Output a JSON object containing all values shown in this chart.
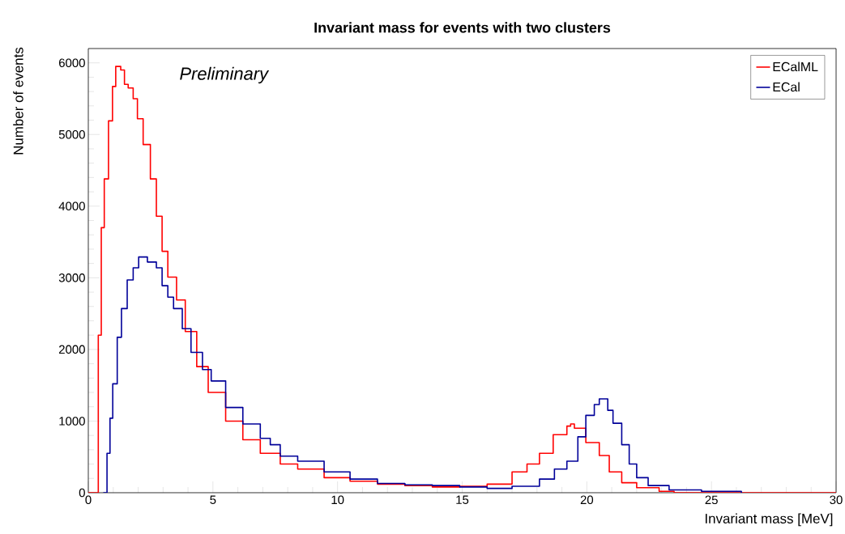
{
  "chart_data": {
    "type": "step",
    "title": "Invariant mass for events with two clusters",
    "xlabel": "Invariant mass [MeV]",
    "ylabel": "Number of events",
    "annotations": [
      "Preliminary"
    ],
    "series": [
      {
        "name": "ECalML",
        "color": "#ff0000",
        "x": [
          0,
          0.23,
          0.4,
          0.52,
          0.64,
          0.81,
          0.97,
          1.1,
          1.3,
          1.45,
          1.6,
          1.8,
          1.97,
          2.2,
          2.49,
          2.73,
          2.96,
          3.19,
          3.54,
          3.89,
          4.35,
          4.81,
          5.51,
          6.2,
          6.9,
          7.7,
          8.4,
          9.46,
          10.5,
          11.6,
          12.7,
          13.8,
          14.9,
          16,
          17,
          17.6,
          18.1,
          18.65,
          19.2,
          19.35,
          19.5,
          19.96,
          20.5,
          20.9,
          21.4,
          22,
          22.9,
          23.5,
          30
        ],
        "values": [
          0,
          0,
          2200,
          3700,
          4380,
          5190,
          5670,
          5950,
          5900,
          5700,
          5650,
          5500,
          5220,
          4860,
          4380,
          3860,
          3370,
          3010,
          2690,
          2250,
          1760,
          1400,
          1000,
          740,
          550,
          400,
          330,
          210,
          160,
          120,
          100,
          80,
          90,
          120,
          290,
          400,
          550,
          810,
          930,
          960,
          900,
          700,
          520,
          290,
          140,
          70,
          20,
          0,
          0
        ]
      },
      {
        "name": "ECal",
        "color": "#000099",
        "x": [
          0.6,
          0.75,
          0.87,
          0.98,
          1.16,
          1.33,
          1.56,
          1.8,
          2.02,
          2.37,
          2.73,
          2.96,
          3.19,
          3.42,
          3.77,
          4.12,
          4.58,
          4.93,
          5.51,
          6.2,
          6.9,
          7.3,
          7.7,
          8.4,
          9.46,
          10.5,
          11.6,
          12.7,
          13.8,
          14.9,
          16,
          17,
          18.1,
          18.7,
          19.2,
          19.64,
          19.96,
          20.3,
          20.5,
          20.84,
          21.05,
          21.4,
          21.7,
          22,
          22.46,
          23.3,
          24.6,
          26.2
        ],
        "values": [
          0,
          550,
          1040,
          1520,
          2170,
          2570,
          2970,
          3140,
          3290,
          3220,
          3140,
          2890,
          2730,
          2570,
          2290,
          1960,
          1720,
          1560,
          1190,
          960,
          760,
          670,
          510,
          440,
          290,
          190,
          130,
          110,
          100,
          80,
          60,
          90,
          190,
          330,
          440,
          780,
          1080,
          1230,
          1310,
          1150,
          970,
          670,
          400,
          210,
          100,
          40,
          20,
          0
        ]
      }
    ],
    "xlim": [
      0,
      30
    ],
    "ylim": [
      0,
      6200
    ],
    "xticks": [
      0,
      5,
      10,
      15,
      20,
      25,
      30
    ],
    "yticks": [
      0,
      1000,
      2000,
      3000,
      4000,
      5000,
      6000
    ],
    "grid": false,
    "legend": "top right",
    "line_style": "solid",
    "marker": "none"
  }
}
